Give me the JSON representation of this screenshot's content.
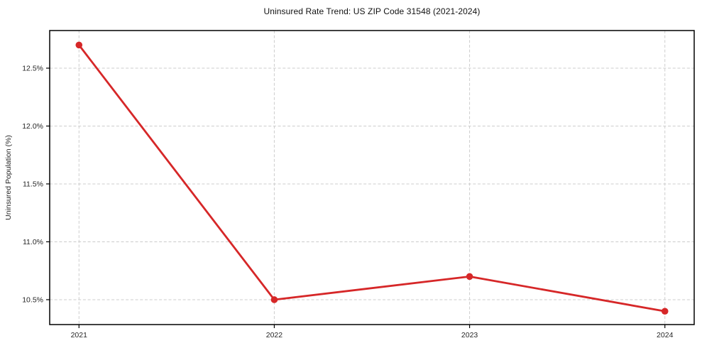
{
  "chart": {
    "title": "Uninsured Rate Trend: US ZIP Code 31548 (2021-2024)"
  },
  "chart_data": {
    "type": "line",
    "title": "Uninsured Rate Trend: US ZIP Code 31548 (2021-2024)",
    "xlabel": "",
    "ylabel": "Uninsured Population (%)",
    "x": [
      2021,
      2022,
      2023,
      2024
    ],
    "categories": [
      "2021",
      "2022",
      "2023",
      "2024"
    ],
    "series": [
      {
        "name": "Uninsured Rate",
        "values": [
          12.7,
          10.5,
          10.7,
          10.4
        ]
      }
    ],
    "yticks": [
      10.5,
      11.0,
      11.5,
      12.0,
      12.5
    ],
    "ytick_labels": [
      "10.5%",
      "11.0%",
      "11.5%",
      "12.0%",
      "12.5%"
    ],
    "xlim": [
      2020.85,
      2024.15
    ],
    "ylim": [
      10.285,
      12.825
    ],
    "grid": true,
    "grid_style": "dashed",
    "legend_position": "none",
    "colors": {
      "line": "#d62728",
      "marker": "#d62728",
      "grid": "#cccccc",
      "spine": "#000000",
      "text": "#262626",
      "background": "#ffffff"
    }
  }
}
